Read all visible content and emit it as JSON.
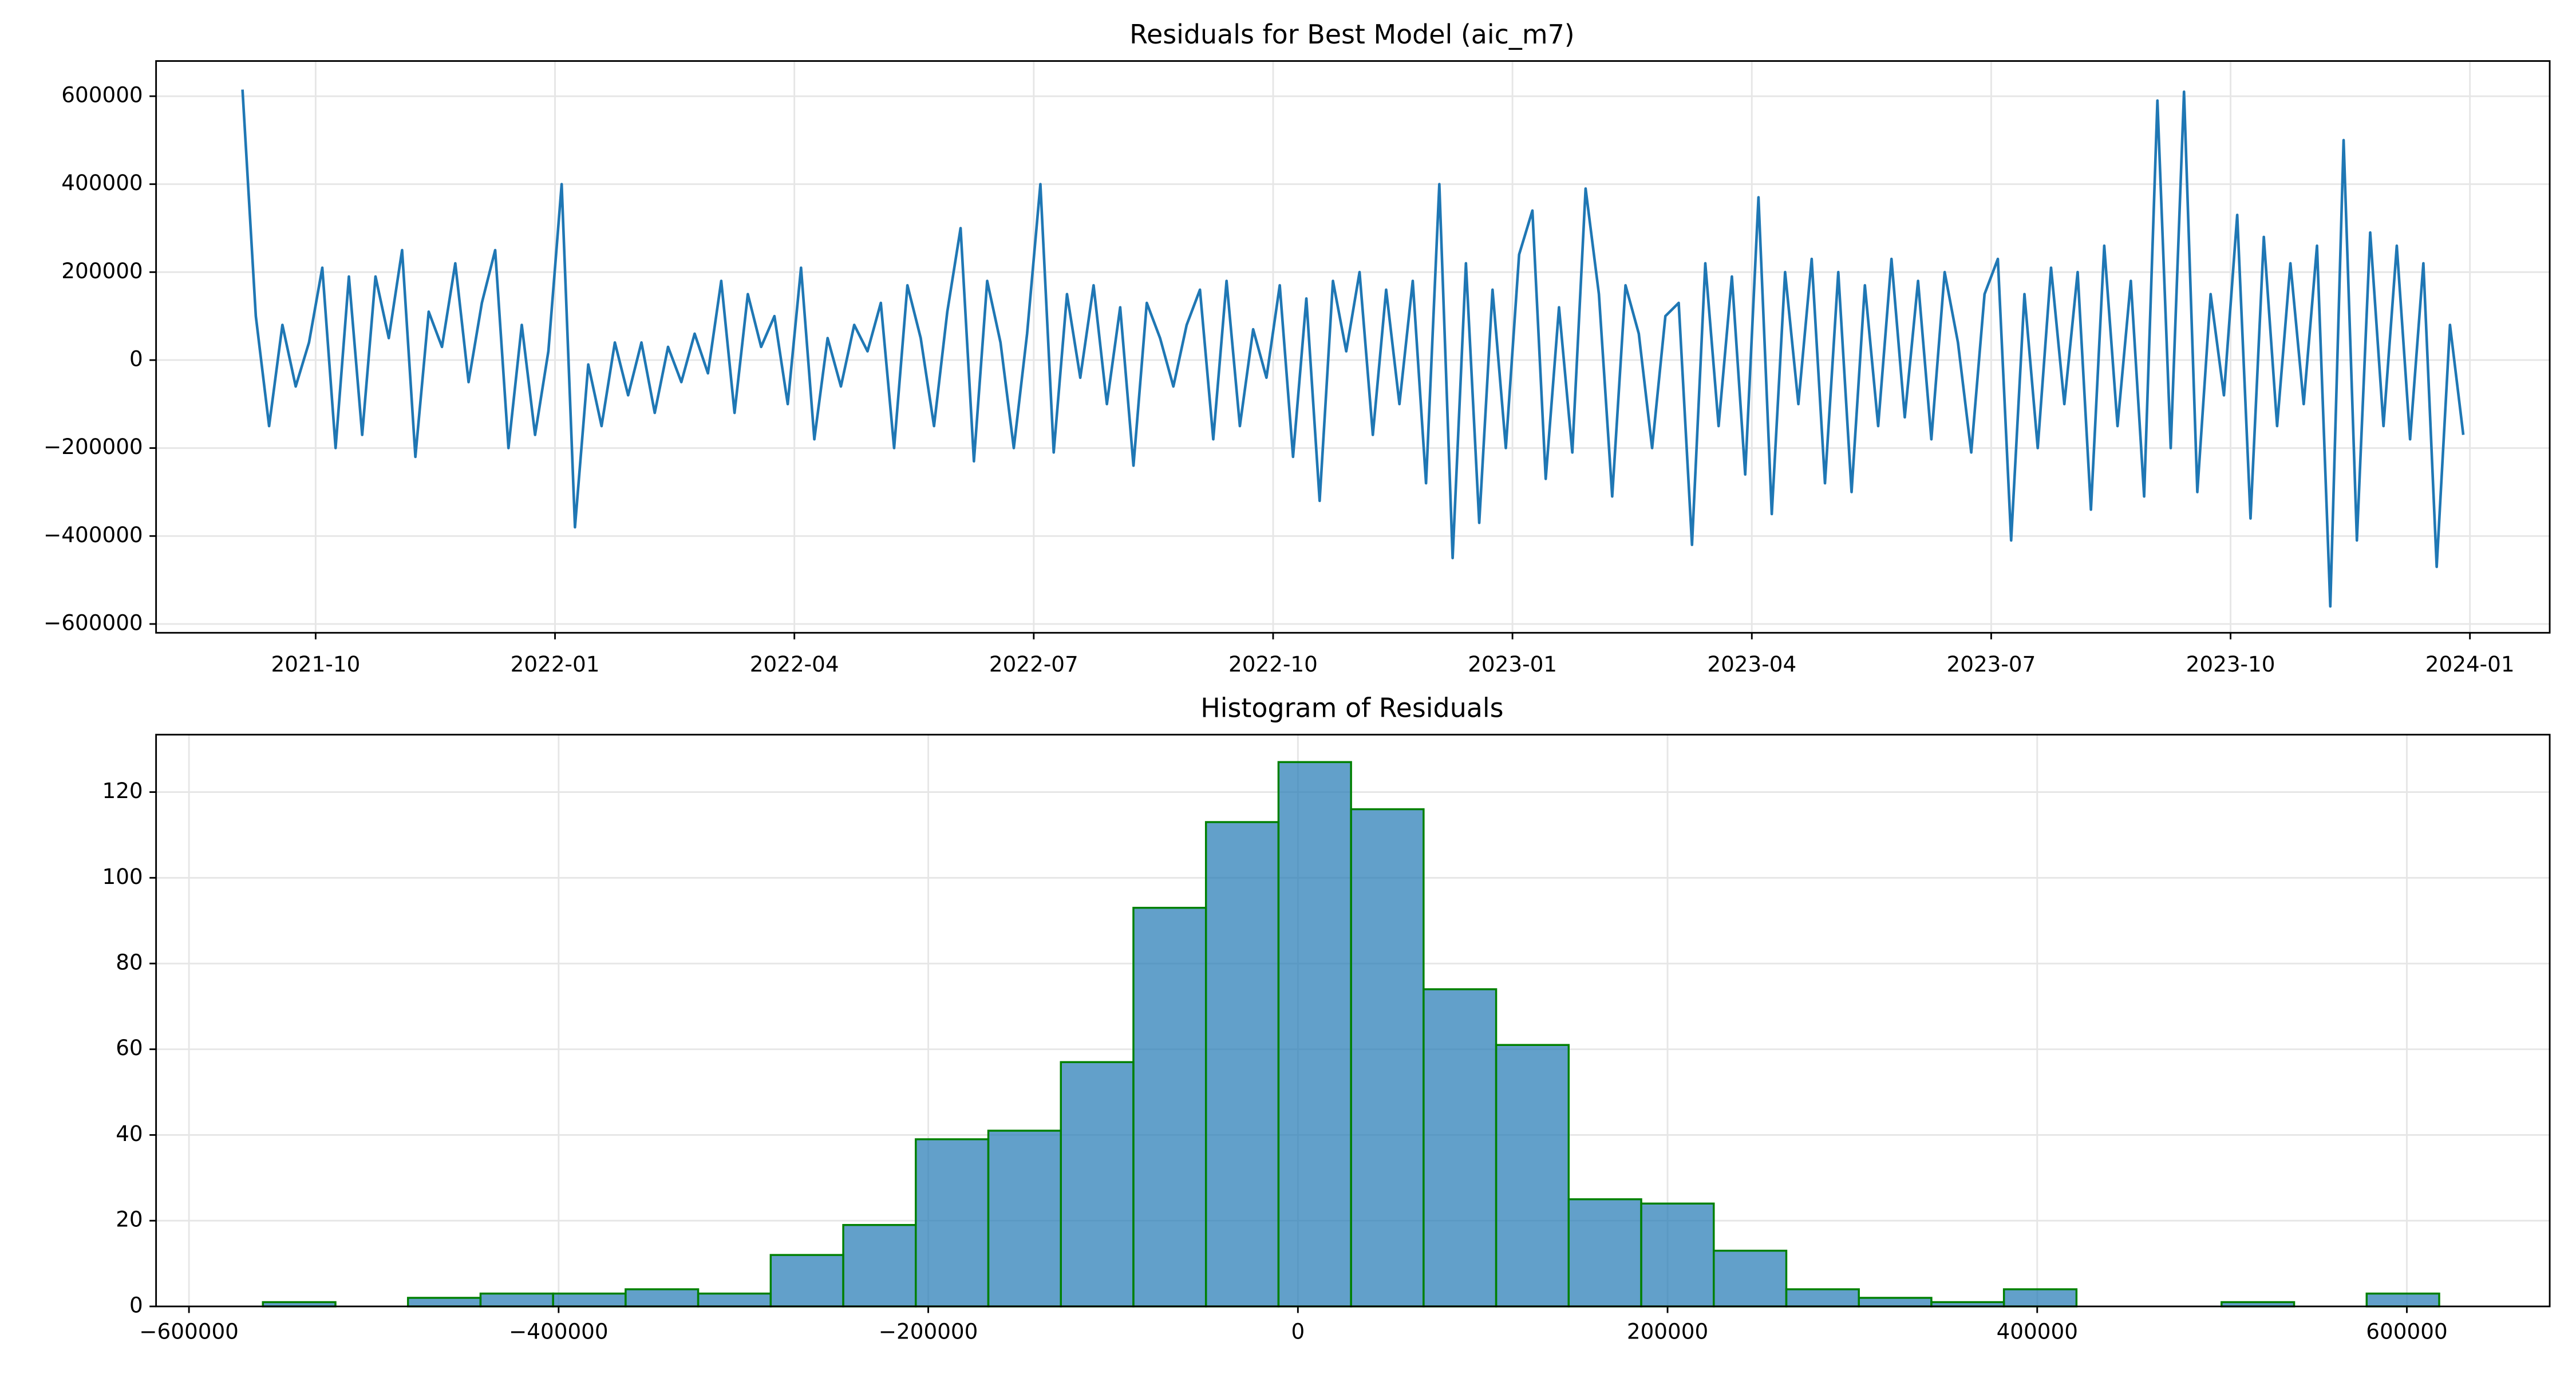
{
  "chart_data": [
    {
      "type": "line",
      "title": "Residuals for Best Model (aic_m7)",
      "x": [
        "2021-09",
        "2021-10",
        "2021-11",
        "2021-12",
        "2022-01",
        "2022-02",
        "2022-03",
        "2022-04",
        "2022-05",
        "2022-06",
        "2022-07",
        "2022-08",
        "2022-09",
        "2022-10",
        "2022-11",
        "2022-12",
        "2023-01",
        "2023-02",
        "2023-03",
        "2023-04",
        "2023-05",
        "2023-06",
        "2023-07",
        "2023-08",
        "2023-09",
        "2023-10",
        "2023-11",
        "2023-12"
      ],
      "series": [
        {
          "name": "Residuals",
          "color": "#1f77b4",
          "values": [
            [
              615000,
              100000,
              -150000,
              80000,
              -60000,
              40000
            ],
            [
              210000,
              -200000,
              190000,
              -170000,
              190000,
              50000
            ],
            [
              250000,
              -220000,
              110000,
              30000,
              220000,
              -50000
            ],
            [
              130000,
              250000,
              -200000,
              80000,
              -170000,
              20000
            ],
            [
              400000,
              -380000,
              -10000,
              -150000,
              40000,
              -80000
            ],
            [
              40000,
              -120000,
              30000,
              -50000,
              60000,
              -30000
            ],
            [
              180000,
              -120000,
              150000,
              30000,
              100000,
              -100000
            ],
            [
              210000,
              -180000,
              50000,
              -60000,
              80000,
              20000
            ],
            [
              130000,
              -200000,
              170000,
              50000,
              -150000,
              110000
            ],
            [
              300000,
              -230000,
              180000,
              40000,
              -200000,
              60000
            ],
            [
              400000,
              -210000,
              150000,
              -40000,
              170000,
              -100000
            ],
            [
              120000,
              -240000,
              130000,
              50000,
              -60000,
              80000
            ],
            [
              160000,
              -180000,
              180000,
              -150000,
              70000,
              -40000
            ],
            [
              170000,
              -220000,
              140000,
              -320000,
              180000,
              20000
            ],
            [
              200000,
              -170000,
              160000,
              -100000,
              180000,
              -280000
            ],
            [
              400000,
              -450000,
              220000,
              -370000,
              160000,
              -200000
            ],
            [
              240000,
              340000,
              -270000,
              120000,
              -210000,
              390000
            ],
            [
              150000,
              -310000,
              170000,
              60000,
              -200000,
              100000
            ],
            [
              130000,
              -420000,
              220000,
              -150000,
              190000,
              -260000
            ],
            [
              370000,
              -350000,
              200000,
              -100000,
              230000,
              -280000
            ],
            [
              200000,
              -300000,
              170000,
              -150000,
              230000,
              -130000
            ],
            [
              180000,
              -180000,
              200000,
              40000,
              -210000,
              150000
            ],
            [
              230000,
              -410000,
              150000,
              -200000,
              210000,
              -100000
            ],
            [
              200000,
              -340000,
              260000,
              -150000,
              180000,
              -310000
            ],
            [
              590000,
              -200000,
              610000,
              -300000,
              150000,
              -80000
            ],
            [
              330000,
              -360000,
              280000,
              -150000,
              220000,
              -100000
            ],
            [
              260000,
              -560000,
              500000,
              -410000,
              290000,
              -150000
            ],
            [
              260000,
              -180000,
              220000,
              -470000,
              80000,
              -170000
            ]
          ]
        }
      ],
      "xlim": [
        "2021-08",
        "2024-02"
      ],
      "xticks": [
        "2021-10",
        "2022-01",
        "2022-04",
        "2022-07",
        "2022-10",
        "2023-01",
        "2023-04",
        "2023-07",
        "2023-10",
        "2024-01"
      ],
      "ylim": [
        -620000,
        680000
      ],
      "yticks": [
        {
          "value": -600000,
          "label": "−600000"
        },
        {
          "value": -400000,
          "label": "−400000"
        },
        {
          "value": -200000,
          "label": "−200000"
        },
        0,
        200000,
        400000,
        600000
      ],
      "grid": true
    },
    {
      "type": "histogram",
      "title": "Histogram of Residuals",
      "bins": [
        -560000,
        -520750,
        -481500,
        -442250,
        -403000,
        -363750,
        -324500,
        -285250,
        -246000,
        -206750,
        -167500,
        -128250,
        -89000,
        -49750,
        -10500,
        28750,
        68000,
        107250,
        146500,
        185750,
        225000,
        264250,
        303500,
        342750,
        382000,
        421250,
        460500,
        499750,
        539000,
        578250,
        617500
      ],
      "counts": [
        1,
        0,
        2,
        3,
        3,
        4,
        3,
        12,
        19,
        39,
        41,
        57,
        93,
        113,
        127,
        116,
        74,
        61,
        25,
        24,
        13,
        4,
        2,
        1,
        4,
        0,
        0,
        1,
        0,
        3
      ],
      "color": "#1f77b4",
      "edgecolor": "#008000",
      "xlim": [
        -617800,
        677300
      ],
      "xticks": [
        {
          "value": -600000,
          "label": "−600000"
        },
        {
          "value": -400000,
          "label": "−400000"
        },
        {
          "value": -200000,
          "label": "−200000"
        },
        0,
        200000,
        400000,
        600000
      ],
      "ylim": [
        0,
        133.4
      ],
      "yticks": [
        0,
        20,
        40,
        60,
        80,
        100,
        120
      ],
      "grid": true
    }
  ]
}
